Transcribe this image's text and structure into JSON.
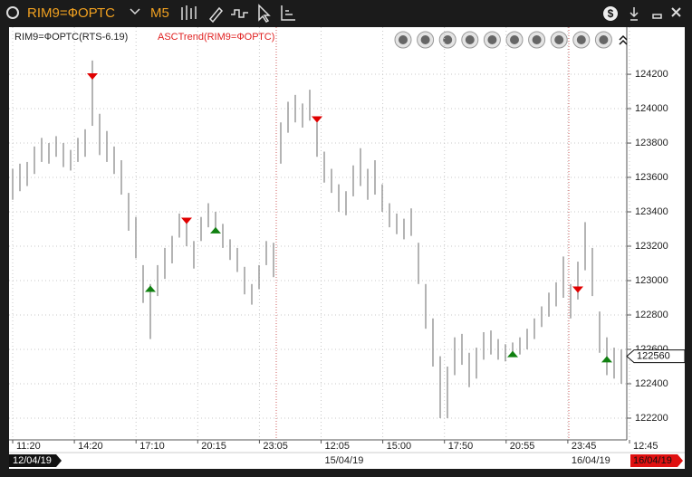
{
  "window": {
    "symbol": "RIM9=ФОРТС",
    "timeframe": "M5"
  },
  "chart_data": {
    "type": "hlbar",
    "legend": [
      "RIM9=ФОРТС(RTS-6.19)",
      "ASCTrend(RIM9=ФОРТС)"
    ],
    "highs": [
      123650,
      123680,
      123690,
      123780,
      123830,
      123800,
      123840,
      123800,
      123760,
      123830,
      123880,
      124280,
      123970,
      123870,
      123780,
      123700,
      123510,
      123370,
      123090,
      122980,
      123090,
      123190,
      123260,
      123390,
      123360,
      123230,
      123370,
      123450,
      123400,
      123330,
      123240,
      123190,
      123080,
      122980,
      123090,
      123230,
      123220,
      123920,
      124040,
      124080,
      124030,
      124110,
      123920,
      123750,
      123650,
      123560,
      123520,
      123670,
      123770,
      123650,
      123700,
      123560,
      123450,
      123390,
      123360,
      123420,
      123220,
      122980,
      122780,
      122560,
      122500,
      122670,
      122690,
      122580,
      122610,
      122700,
      122710,
      122660,
      122630,
      122640,
      122670,
      122720,
      122780,
      122850,
      122930,
      122990,
      123140,
      122980,
      123110,
      123340,
      123190,
      122820,
      122670,
      122610,
      122600
    ],
    "lows": [
      123470,
      123520,
      123550,
      123620,
      123690,
      123680,
      123720,
      123660,
      123640,
      123690,
      123720,
      123900,
      123730,
      123690,
      123620,
      123500,
      123290,
      123130,
      122870,
      122660,
      122910,
      123010,
      123100,
      123250,
      123200,
      123070,
      123230,
      123310,
      123280,
      123190,
      123120,
      123050,
      122920,
      122860,
      122950,
      123090,
      123020,
      123680,
      123860,
      123920,
      123890,
      123930,
      123720,
      123570,
      123510,
      123400,
      123380,
      123490,
      123550,
      123470,
      123500,
      123400,
      123310,
      123270,
      123240,
      123260,
      122980,
      122720,
      122500,
      122200,
      122200,
      122450,
      122510,
      122380,
      122430,
      122540,
      122570,
      122540,
      122530,
      122560,
      122570,
      122600,
      122660,
      122730,
      122790,
      122850,
      122900,
      122780,
      122890,
      123060,
      122910,
      122580,
      122450,
      122430,
      122400
    ],
    "color": "#9a9a9a",
    "sells": [
      {
        "bar": 11,
        "price": 124190
      },
      {
        "bar": 24,
        "price": 123350
      },
      {
        "bar": 42,
        "price": 123940
      },
      {
        "bar": 78,
        "price": 122950
      }
    ],
    "buys": [
      {
        "bar": 19,
        "price": 122950
      },
      {
        "bar": 28,
        "price": 123290
      },
      {
        "bar": 69,
        "price": 122570
      },
      {
        "bar": 82,
        "price": 122540
      }
    ],
    "ylim": [
      122084,
      124474
    ],
    "yticks": [
      122200,
      122400,
      122600,
      122800,
      123000,
      123200,
      123400,
      123600,
      123800,
      124000,
      124200
    ],
    "last_price": 122560,
    "time_labels": [
      {
        "time": "11:20"
      },
      {
        "time": "14:20"
      },
      {
        "time": "17:10"
      },
      {
        "time": "20:15"
      },
      {
        "time": "23:05"
      },
      {
        "time": "12:05",
        "date": "15/04/19"
      },
      {
        "time": "15:00"
      },
      {
        "time": "17:50"
      },
      {
        "time": "20:55"
      },
      {
        "time": "23:45",
        "date": "16/04/19"
      },
      {
        "time": "12:45"
      }
    ],
    "start_date": "12/04/19",
    "end_date": "16/04/19",
    "grid": true
  }
}
